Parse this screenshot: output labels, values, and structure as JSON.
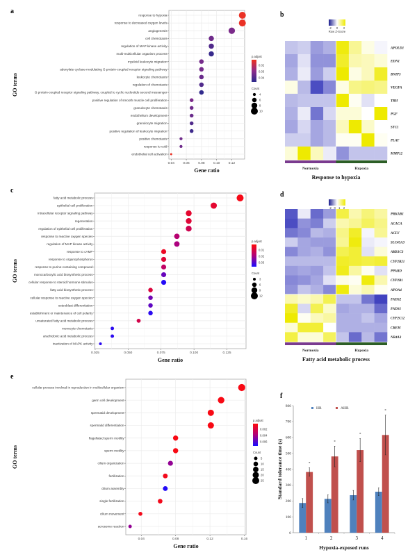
{
  "figure": {
    "panels": [
      "a",
      "b",
      "c",
      "d",
      "e",
      "f"
    ]
  },
  "chart_data": [
    {
      "id": "a",
      "type": "scatter",
      "subtype": "dotplot",
      "panel_letter": "a",
      "xlabel": "Gene ratio",
      "ylabel": "GO terms",
      "xlim": [
        0.037,
        0.137
      ],
      "xticks": [
        0.04,
        0.06,
        0.08,
        0.1,
        0.12
      ],
      "xtick_labels": [
        "0.04",
        "0.06",
        "0.08",
        "0.10",
        "0.12"
      ],
      "grid": true,
      "color_legend": {
        "title": "p.adjust",
        "ticks": [
          "0.02",
          "0.03",
          "0.04"
        ],
        "range": [
          0.014,
          0.046
        ],
        "low_color": "#f0311e",
        "high_color": "#2b2a8c"
      },
      "size_legend": {
        "title": "Count",
        "values": [
          4,
          6,
          8,
          10
        ],
        "labels": [
          "4",
          "6",
          "8",
          "10"
        ]
      },
      "terms": [
        {
          "label": "response to hypoxia",
          "x": 0.134,
          "count": 10,
          "padj": 0.015
        },
        {
          "label": "response to decreased oxygen levels",
          "x": 0.134,
          "count": 10,
          "padj": 0.015
        },
        {
          "label": "angiogenesis",
          "x": 0.12,
          "count": 9,
          "padj": 0.033
        },
        {
          "label": "cell chemotaxis",
          "x": 0.093,
          "count": 7,
          "padj": 0.035
        },
        {
          "label": "regulation of MAP kinase activity",
          "x": 0.093,
          "count": 7,
          "padj": 0.04
        },
        {
          "label": "multi-multicellular organism process",
          "x": 0.093,
          "count": 7,
          "padj": 0.044
        },
        {
          "label": "myeloid leukocyte migration",
          "x": 0.08,
          "count": 6,
          "padj": 0.034
        },
        {
          "label": "adenylate cyclase-modulating G protein-coupled receptor signaling pathway",
          "x": 0.08,
          "count": 6,
          "padj": 0.034
        },
        {
          "label": "leukocyte chemotaxis",
          "x": 0.08,
          "count": 6,
          "padj": 0.036
        },
        {
          "label": "regulation of chemotaxis",
          "x": 0.08,
          "count": 6,
          "padj": 0.04
        },
        {
          "label": "G protein-coupled receptor signaling pathway, coupled to cyclic nucleotide second messenger",
          "x": 0.08,
          "count": 6,
          "padj": 0.045
        },
        {
          "label": "positive regulation of smooth muscle cell proliferation",
          "x": 0.067,
          "count": 5,
          "padj": 0.033
        },
        {
          "label": "granulocyte chemotaxis",
          "x": 0.067,
          "count": 5,
          "padj": 0.035
        },
        {
          "label": "endothelium development",
          "x": 0.067,
          "count": 5,
          "padj": 0.036
        },
        {
          "label": "granulocyte migration",
          "x": 0.067,
          "count": 5,
          "padj": 0.04
        },
        {
          "label": "positive regulation of leukocyte migration",
          "x": 0.067,
          "count": 5,
          "padj": 0.043
        },
        {
          "label": "positive chemotaxis",
          "x": 0.053,
          "count": 4,
          "padj": 0.035
        },
        {
          "label": "response to cold",
          "x": 0.053,
          "count": 4,
          "padj": 0.035
        },
        {
          "label": "endothelial cell activation",
          "x": 0.04,
          "count": 3,
          "padj": 0.015
        }
      ]
    },
    {
      "id": "b",
      "type": "heatmap",
      "panel_letter": "b",
      "title": "Response to hypoxia",
      "legend_title": "Row Z-Score",
      "legend_ticks": [
        "-2",
        "0",
        "2"
      ],
      "groups": [
        {
          "label": "Normoxia",
          "color": "#7a3b8f",
          "n": 4
        },
        {
          "label": "Hypoxia",
          "color": "#2c5e26",
          "n": 4
        }
      ],
      "rows": [
        "APOLD1",
        "EDN1",
        "BNIP3",
        "VEGFA",
        "TRH",
        "PGF",
        "STC1",
        "PLAT",
        "MMP12"
      ],
      "values": [
        [
          -0.6,
          -0.5,
          -1.0,
          -0.8,
          1.8,
          0.8,
          0.2,
          -0.1
        ],
        [
          -0.9,
          -0.3,
          -1.1,
          -1.1,
          1.6,
          0.6,
          0.5,
          0.3
        ],
        [
          -0.8,
          -0.2,
          -1.0,
          -0.5,
          1.9,
          0.2,
          0.5,
          1.6
        ],
        [
          0.2,
          -0.7,
          -1.8,
          -1.2,
          0.2,
          0.9,
          1.0,
          0.9
        ],
        [
          -0.7,
          -0.6,
          -0.6,
          -0.6,
          1.9,
          0.1,
          -0.3,
          0.0
        ],
        [
          -0.8,
          -0.2,
          -1.4,
          -0.4,
          0.3,
          0.3,
          0.0,
          1.9
        ],
        [
          -0.9,
          -0.4,
          -0.9,
          -0.7,
          0.5,
          1.9,
          0.4,
          0.0
        ],
        [
          -0.5,
          -0.5,
          -0.9,
          -0.7,
          0.1,
          0.1,
          1.9,
          0.1
        ],
        [
          0.3,
          1.9,
          0.5,
          -0.2,
          -1.1,
          -0.6,
          -0.6,
          -0.6
        ]
      ]
    },
    {
      "id": "c",
      "type": "scatter",
      "subtype": "dotplot",
      "panel_letter": "c",
      "xlabel": "Gene ratio",
      "ylabel": "GO terms",
      "xlim": [
        0.0245,
        0.1395
      ],
      "xticks": [
        0.025,
        0.05,
        0.075,
        0.1,
        0.125
      ],
      "xtick_labels": [
        "0.025",
        "0.050",
        "0.075",
        "0.100",
        "0.125"
      ],
      "grid": true,
      "color_legend": {
        "title": "p.adjust",
        "ticks": [
          "0.01",
          "0.02",
          "0.03"
        ],
        "range": [
          0.002,
          0.037
        ],
        "low_color": "#ff0a0a",
        "high_color": "#1a0cff"
      },
      "size_legend": {
        "title": "Count",
        "values": [
          3,
          6,
          9,
          12
        ],
        "labels": [
          "3",
          "6",
          "9",
          "12"
        ]
      },
      "terms": [
        {
          "label": "fatty acid metabolic process",
          "x": 0.135,
          "count": 12,
          "padj": 0.004
        },
        {
          "label": "epithelial cell proliferation",
          "x": 0.115,
          "count": 10,
          "padj": 0.008
        },
        {
          "label": "intracellular receptor signaling pathway",
          "x": 0.096,
          "count": 9,
          "padj": 0.008
        },
        {
          "label": "regeneration",
          "x": 0.096,
          "count": 9,
          "padj": 0.009
        },
        {
          "label": "regulation of epithelial cell proliferation",
          "x": 0.096,
          "count": 9,
          "padj": 0.013
        },
        {
          "label": "response to reactive oxygen species",
          "x": 0.087,
          "count": 8,
          "padj": 0.018
        },
        {
          "label": "regulation of MAP kinase activity",
          "x": 0.087,
          "count": 8,
          "padj": 0.02
        },
        {
          "label": "response to cAMP",
          "x": 0.077,
          "count": 7,
          "padj": 0.006
        },
        {
          "label": "response to organophosphorus",
          "x": 0.077,
          "count": 7,
          "padj": 0.009
        },
        {
          "label": "response to purine-containing compound",
          "x": 0.077,
          "count": 7,
          "padj": 0.016
        },
        {
          "label": "monocarboxylic acid biosynthetic process",
          "x": 0.077,
          "count": 7,
          "padj": 0.028
        },
        {
          "label": "cellular response to steroid hormone stimulus",
          "x": 0.077,
          "count": 7,
          "padj": 0.036
        },
        {
          "label": "fatty acid biosynthetic process",
          "x": 0.067,
          "count": 6,
          "padj": 0.01
        },
        {
          "label": "cellular response to reactive oxygen species",
          "x": 0.067,
          "count": 6,
          "padj": 0.027
        },
        {
          "label": "osteoblast differentiation",
          "x": 0.067,
          "count": 6,
          "padj": 0.029
        },
        {
          "label": "establishment or maintenance of cell polarity",
          "x": 0.067,
          "count": 6,
          "padj": 0.035
        },
        {
          "label": "unsaturated fatty acid metabolic process",
          "x": 0.058,
          "count": 5,
          "padj": 0.012
        },
        {
          "label": "monocyte chemotaxis",
          "x": 0.038,
          "count": 4,
          "padj": 0.035
        },
        {
          "label": "arachidonic acid metabolic process",
          "x": 0.038,
          "count": 4,
          "padj": 0.035
        },
        {
          "label": "inactivation of MAPK activity",
          "x": 0.029,
          "count": 3,
          "padj": 0.035
        }
      ]
    },
    {
      "id": "d",
      "type": "heatmap",
      "panel_letter": "d",
      "title": "Fatty acid metabolic process",
      "legend_title": "Row Z-Score",
      "legend_ticks": [
        "-2",
        "0",
        "1",
        "2"
      ],
      "groups": [
        {
          "label": "Normoxia",
          "color": "#7a3b8f",
          "n": 4
        },
        {
          "label": "Hypoxia",
          "color": "#2c5e26",
          "n": 4
        }
      ],
      "rows": [
        "PRKAB1",
        "ACACA",
        "ACLY",
        "SLC45A3",
        "AKR1C3",
        "CYP2B21",
        "PPARD",
        "CYP2B1",
        "APOA4",
        "FADS2",
        "FADS1",
        "CYP2C12",
        "CREM",
        "NR4A3"
      ],
      "values": [
        [
          -1.7,
          -0.2,
          -1.5,
          -1.0,
          1.4,
          0.6,
          1.0,
          0.7
        ],
        [
          -1.8,
          -1.1,
          -1.3,
          -0.5,
          0.6,
          0.8,
          1.2,
          0.9
        ],
        [
          -1.4,
          -1.2,
          -0.7,
          -0.8,
          0.9,
          1.6,
          -0.1,
          0.8
        ],
        [
          -0.5,
          -0.9,
          -1.0,
          -1.0,
          0.8,
          1.8,
          -0.2,
          -0.1
        ],
        [
          -1.2,
          -0.9,
          -0.8,
          -1.1,
          1.3,
          1.5,
          -0.3,
          0.3
        ],
        [
          -0.7,
          -0.7,
          -0.7,
          -0.7,
          1.6,
          1.5,
          1.4,
          1.5
        ],
        [
          -1.0,
          -0.9,
          -1.0,
          -0.6,
          1.7,
          0.7,
          0.1,
          -0.3
        ],
        [
          -1.2,
          -1.1,
          -0.9,
          -0.3,
          0.2,
          0.1,
          1.8,
          0.6
        ],
        [
          -1.1,
          -0.6,
          -0.8,
          -1.2,
          1.8,
          0.3,
          0.6,
          0.1
        ],
        [
          0.6,
          0.4,
          0.6,
          1.3,
          -0.6,
          -0.6,
          -1.4,
          -1.9
        ],
        [
          1.6,
          -0.4,
          1.3,
          0.4,
          -0.9,
          -0.8,
          -0.8,
          -1.5
        ],
        [
          1.9,
          0.1,
          0.5,
          0.7,
          -0.8,
          -0.8,
          -0.6,
          -0.9
        ],
        [
          0.3,
          1.5,
          1.5,
          0.0,
          -0.8,
          -0.8,
          -0.8,
          -0.8
        ],
        [
          1.4,
          0.3,
          0.3,
          1.2,
          -0.6,
          -1.5,
          -0.7,
          -1.4
        ]
      ]
    },
    {
      "id": "e",
      "type": "scatter",
      "subtype": "dotplot",
      "panel_letter": "e",
      "xlabel": "Gene ratio",
      "ylabel": "GO terms",
      "xlim": [
        0.022,
        0.162
      ],
      "xticks": [
        0.04,
        0.08,
        0.12,
        0.16
      ],
      "xtick_labels": [
        "0.04",
        "0.08",
        "0.12",
        "0.16"
      ],
      "grid": true,
      "color_legend": {
        "title": "p.adjust",
        "ticks": [
          "0.002",
          "0.004",
          "0.006"
        ],
        "range": [
          0.0005,
          0.0072
        ],
        "low_color": "#ff0a0a",
        "high_color": "#1a0cff"
      },
      "size_legend": {
        "title": "Count",
        "values": [
          5,
          10,
          15,
          20,
          25
        ],
        "labels": [
          "5",
          "10",
          "15",
          "20",
          "25"
        ]
      },
      "terms": [
        {
          "label": "cellular process involved in reproduction in multicellular organism",
          "x": 0.157,
          "count": 26,
          "padj": 0.0008
        },
        {
          "label": "germ cell development",
          "x": 0.133,
          "count": 22,
          "padj": 0.0008
        },
        {
          "label": "spermatid development",
          "x": 0.121,
          "count": 20,
          "padj": 0.0008
        },
        {
          "label": "spermatid differentiation",
          "x": 0.121,
          "count": 20,
          "padj": 0.0008
        },
        {
          "label": "flagellated sperm motility",
          "x": 0.08,
          "count": 13,
          "padj": 0.0008
        },
        {
          "label": "sperm motility",
          "x": 0.08,
          "count": 13,
          "padj": 0.0008
        },
        {
          "label": "cilium organization",
          "x": 0.074,
          "count": 12,
          "padj": 0.0045
        },
        {
          "label": "fertilization",
          "x": 0.068,
          "count": 11,
          "padj": 0.001
        },
        {
          "label": "cilium assembly",
          "x": 0.068,
          "count": 11,
          "padj": 0.007
        },
        {
          "label": "single fertilization",
          "x": 0.062,
          "count": 10,
          "padj": 0.001
        },
        {
          "label": "cilium movement",
          "x": 0.039,
          "count": 7,
          "padj": 0.001
        },
        {
          "label": "acrosome reaction",
          "x": 0.027,
          "count": 5,
          "padj": 0.0045
        }
      ]
    },
    {
      "id": "f",
      "type": "bar",
      "panel_letter": "f",
      "categories": [
        "1",
        "2",
        "3",
        "4"
      ],
      "xlabel": "Hypoxia-exposed runs",
      "ylabel": "Standard tolerance time (s)",
      "ylim": [
        0,
        800
      ],
      "yticks": [
        0,
        100,
        200,
        300,
        400,
        500,
        600,
        700,
        800
      ],
      "legend_position": "top",
      "series": [
        {
          "name": "HR",
          "color": "#4f81bd",
          "values": [
            187,
            213,
            236,
            258
          ],
          "errors": [
            28,
            25,
            30,
            24
          ]
        },
        {
          "name": "AHR",
          "color": "#c0504d",
          "values": [
            382,
            480,
            520,
            615
          ],
          "errors": [
            26,
            65,
            72,
            125
          ]
        }
      ],
      "significance_markers": [
        "*",
        "*",
        "*",
        "*"
      ]
    }
  ]
}
